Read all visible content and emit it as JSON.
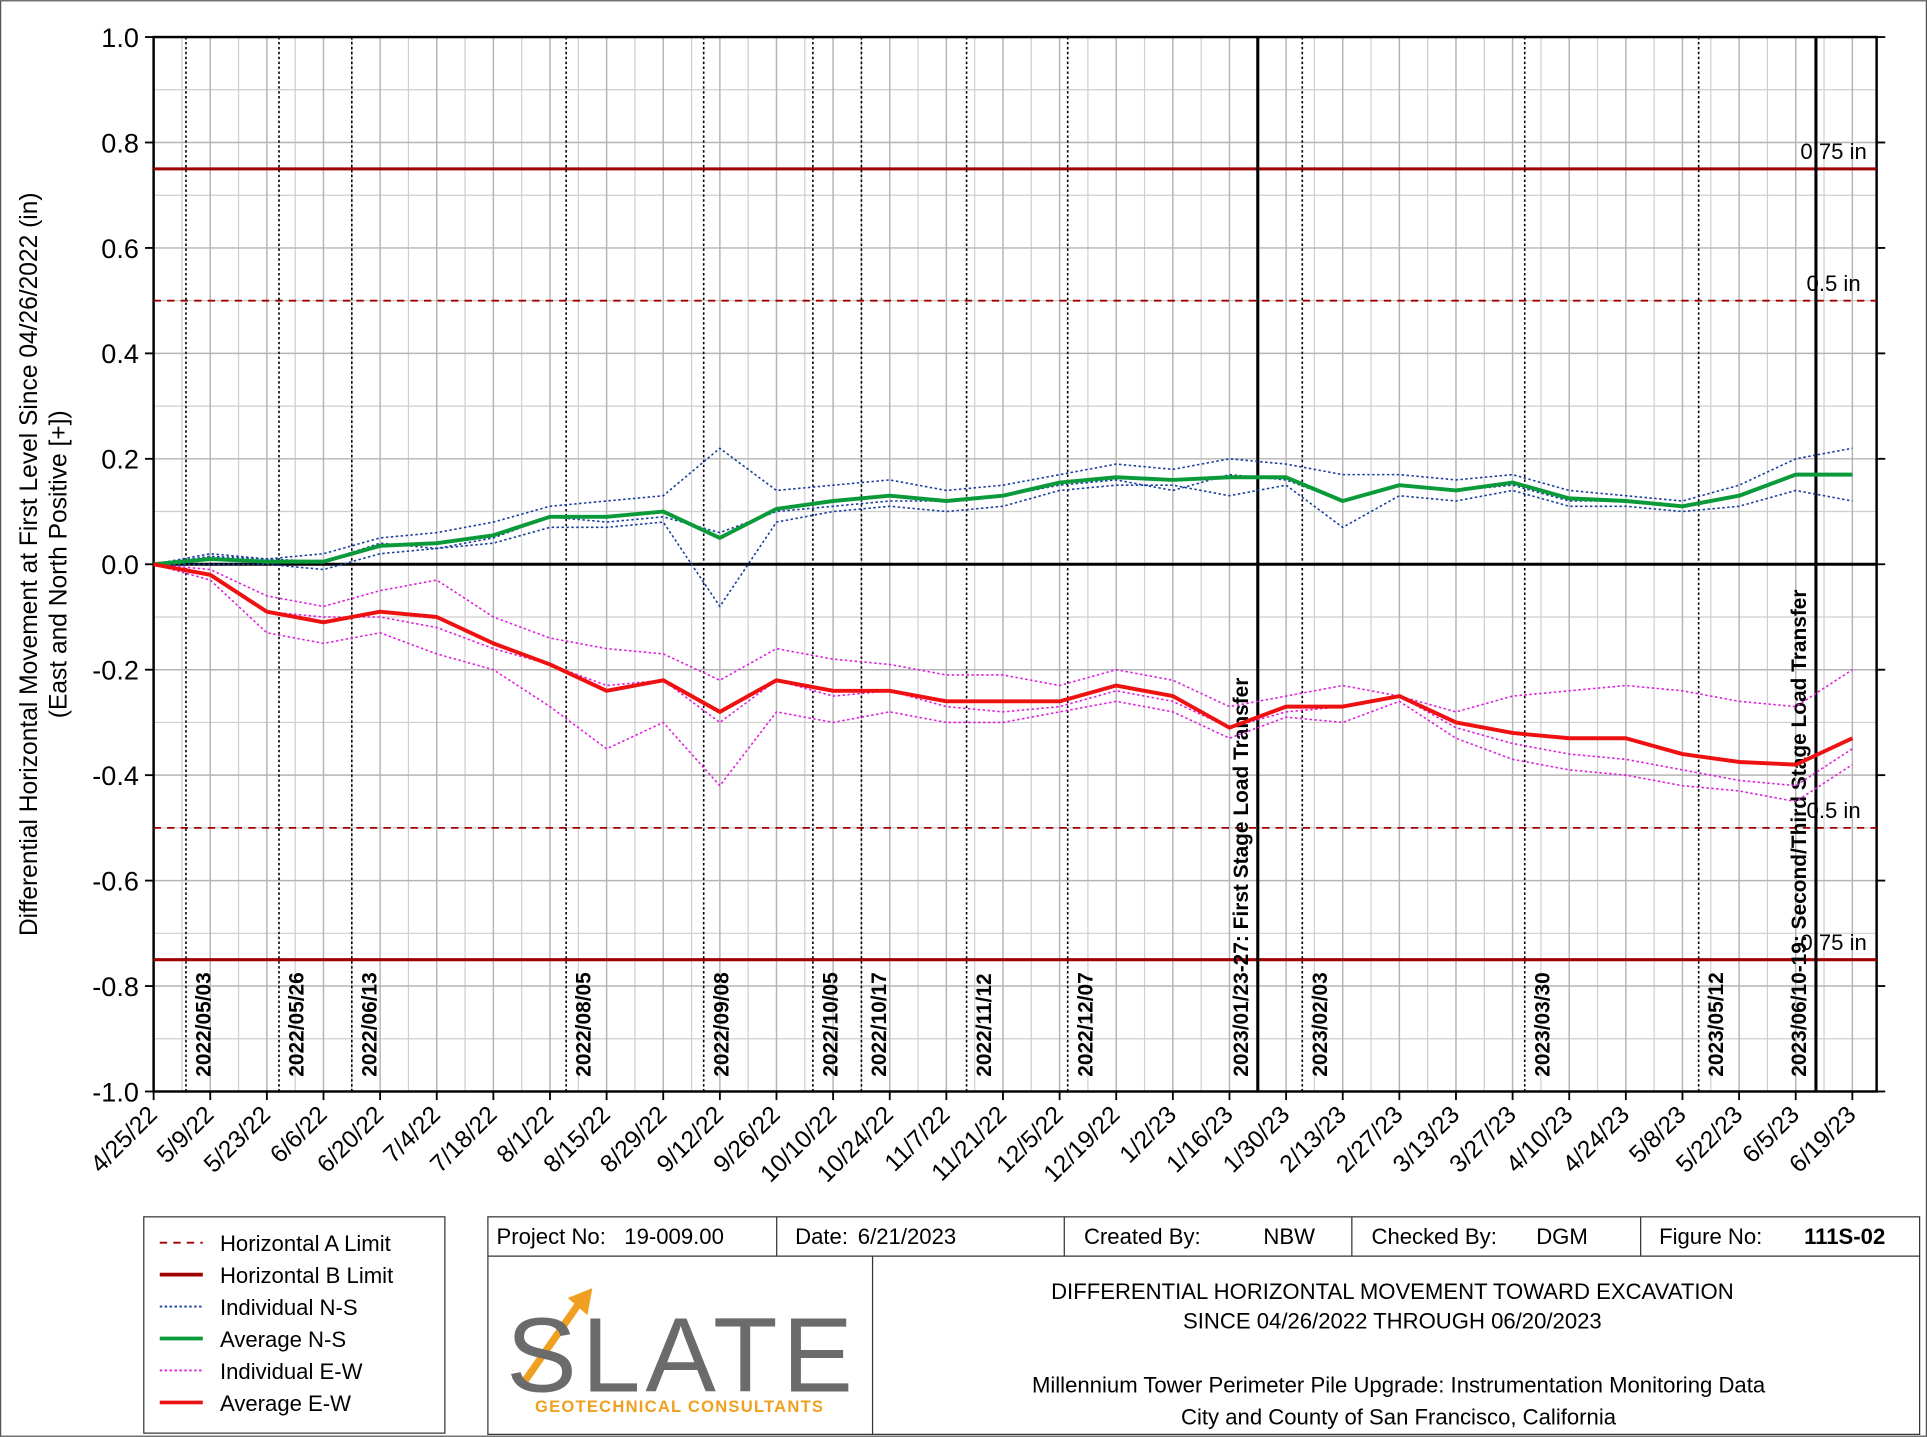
{
  "chart_data": {
    "type": "line",
    "y_label": [
      "Differential Horizontal Movement at First Level Since 04/26/2022 (in)",
      "(East and North Positive [+])"
    ],
    "xlim": [
      "2022-04-25",
      "2023-06-25"
    ],
    "ylim": [
      -1,
      1
    ],
    "grid": true,
    "yticks": [
      {
        "value": 1,
        "label": "1.0"
      },
      0.8,
      0.6,
      0.4,
      0.2,
      {
        "value": 0,
        "label": "0.0"
      },
      -0.2,
      -0.4,
      -0.6,
      -0.8,
      {
        "value": -1,
        "label": "-1.0"
      }
    ],
    "xticks": [
      {
        "value": "2022-04-25",
        "label": "4/25/22"
      },
      {
        "value": "2022-05-09",
        "label": "5/9/22"
      },
      {
        "value": "2022-05-23",
        "label": "5/23/22"
      },
      {
        "value": "2022-06-06",
        "label": "6/6/22"
      },
      {
        "value": "2022-06-20",
        "label": "6/20/22"
      },
      {
        "value": "2022-07-04",
        "label": "7/4/22"
      },
      {
        "value": "2022-07-18",
        "label": "7/18/22"
      },
      {
        "value": "2022-08-01",
        "label": "8/1/22"
      },
      {
        "value": "2022-08-15",
        "label": "8/15/22"
      },
      {
        "value": "2022-08-29",
        "label": "8/29/22"
      },
      {
        "value": "2022-09-12",
        "label": "9/12/22"
      },
      {
        "value": "2022-09-26",
        "label": "9/26/22"
      },
      {
        "value": "2022-10-10",
        "label": "10/10/22"
      },
      {
        "value": "2022-10-24",
        "label": "10/24/22"
      },
      {
        "value": "2022-11-07",
        "label": "11/7/22"
      },
      {
        "value": "2022-11-21",
        "label": "11/21/22"
      },
      {
        "value": "2022-12-05",
        "label": "12/5/22"
      },
      {
        "value": "2022-12-19",
        "label": "12/19/22"
      },
      {
        "value": "2023-01-02",
        "label": "1/2/23"
      },
      {
        "value": "2023-01-16",
        "label": "1/16/23"
      },
      {
        "value": "2023-01-30",
        "label": "1/30/23"
      },
      {
        "value": "2023-02-13",
        "label": "2/13/23"
      },
      {
        "value": "2023-02-27",
        "label": "2/27/23"
      },
      {
        "value": "2023-03-13",
        "label": "3/13/23"
      },
      {
        "value": "2023-03-27",
        "label": "3/27/23"
      },
      {
        "value": "2023-04-10",
        "label": "4/10/23"
      },
      {
        "value": "2023-04-24",
        "label": "4/24/23"
      },
      {
        "value": "2023-05-08",
        "label": "5/8/23"
      },
      {
        "value": "2023-05-22",
        "label": "5/22/23"
      },
      {
        "value": "2023-06-05",
        "label": "6/5/23"
      },
      {
        "value": "2023-06-19",
        "label": "6/19/23"
      }
    ],
    "x": [
      "2022-04-25",
      "2022-05-09",
      "2022-05-23",
      "2022-06-06",
      "2022-06-20",
      "2022-07-04",
      "2022-07-18",
      "2022-08-01",
      "2022-08-15",
      "2022-08-29",
      "2022-09-12",
      "2022-09-26",
      "2022-10-10",
      "2022-10-24",
      "2022-11-07",
      "2022-11-21",
      "2022-12-05",
      "2022-12-19",
      "2023-01-02",
      "2023-01-16",
      "2023-01-30",
      "2023-02-13",
      "2023-02-27",
      "2023-03-13",
      "2023-03-27",
      "2023-04-10",
      "2023-04-24",
      "2023-05-08",
      "2023-05-22",
      "2023-06-05",
      "2023-06-19"
    ],
    "limits": [
      {
        "name": "Horizontal A Limit",
        "color": "#a00000",
        "style": "dashed",
        "values": [
          0.5,
          -0.5
        ],
        "value_labels": [
          "0.5 in",
          "0.5 in"
        ]
      },
      {
        "name": "Horizontal B Limit",
        "color": "#a00000",
        "style": "solid",
        "values": [
          0.75,
          -0.75
        ],
        "value_labels": [
          "0.75 in",
          "0.75 in"
        ]
      }
    ],
    "series": [
      {
        "name": "Individual N-S",
        "color": "#1a3fa0",
        "style": "dotted",
        "lines": [
          [
            0,
            0.02,
            0.01,
            0.02,
            0.05,
            0.06,
            0.08,
            0.11,
            0.12,
            0.13,
            0.22,
            0.14,
            0.15,
            0.16,
            0.14,
            0.15,
            0.17,
            0.19,
            0.18,
            0.2,
            0.19,
            0.17,
            0.17,
            0.16,
            0.17,
            0.14,
            0.13,
            0.12,
            0.15,
            0.2,
            0.22
          ],
          [
            0,
            0.0,
            0.0,
            -0.01,
            0.02,
            0.03,
            0.04,
            0.07,
            0.07,
            0.08,
            -0.08,
            0.08,
            0.1,
            0.11,
            0.1,
            0.11,
            0.14,
            0.15,
            0.15,
            0.13,
            0.15,
            0.07,
            0.13,
            0.12,
            0.14,
            0.11,
            0.11,
            0.1,
            0.11,
            0.14,
            0.12
          ],
          [
            0,
            0.015,
            0.01,
            0.005,
            0.04,
            0.03,
            0.05,
            0.09,
            0.08,
            0.09,
            0.06,
            0.1,
            0.11,
            0.12,
            0.12,
            0.13,
            0.15,
            0.16,
            0.14,
            0.17,
            0.16,
            0.12,
            0.15,
            0.14,
            0.15,
            0.12,
            0.12,
            0.11,
            0.13,
            0.17,
            0.17
          ]
        ]
      },
      {
        "name": "Average N-S",
        "color": "#0a9a3a",
        "style": "solid",
        "values": [
          0,
          0.01,
          0.005,
          0.005,
          0.035,
          0.04,
          0.055,
          0.09,
          0.09,
          0.1,
          0.05,
          0.105,
          0.12,
          0.13,
          0.12,
          0.13,
          0.155,
          0.165,
          0.16,
          0.165,
          0.165,
          0.12,
          0.15,
          0.14,
          0.155,
          0.125,
          0.12,
          0.11,
          0.13,
          0.17,
          0.17
        ]
      },
      {
        "name": "Individual E-W",
        "color": "#e020e0",
        "style": "dotted",
        "lines": [
          [
            0,
            -0.01,
            -0.06,
            -0.08,
            -0.05,
            -0.03,
            -0.1,
            -0.14,
            -0.16,
            -0.17,
            -0.22,
            -0.16,
            -0.18,
            -0.19,
            -0.21,
            -0.21,
            -0.23,
            -0.2,
            -0.22,
            -0.27,
            -0.25,
            -0.23,
            -0.25,
            -0.28,
            -0.25,
            -0.24,
            -0.23,
            -0.24,
            -0.26,
            -0.27,
            -0.2
          ],
          [
            0,
            -0.03,
            -0.13,
            -0.15,
            -0.13,
            -0.17,
            -0.2,
            -0.27,
            -0.35,
            -0.3,
            -0.42,
            -0.28,
            -0.3,
            -0.28,
            -0.3,
            -0.3,
            -0.28,
            -0.26,
            -0.28,
            -0.33,
            -0.29,
            -0.3,
            -0.26,
            -0.33,
            -0.37,
            -0.39,
            -0.4,
            -0.42,
            -0.43,
            -0.45,
            -0.38
          ],
          [
            0,
            -0.02,
            -0.09,
            -0.1,
            -0.1,
            -0.12,
            -0.16,
            -0.19,
            -0.23,
            -0.22,
            -0.3,
            -0.22,
            -0.25,
            -0.24,
            -0.27,
            -0.28,
            -0.27,
            -0.24,
            -0.26,
            -0.31,
            -0.28,
            -0.27,
            -0.25,
            -0.31,
            -0.34,
            -0.36,
            -0.37,
            -0.39,
            -0.41,
            -0.42,
            -0.35
          ]
        ]
      },
      {
        "name": "Average E-W",
        "color": "#ee1111",
        "style": "solid",
        "values": [
          0,
          -0.02,
          -0.09,
          -0.11,
          -0.09,
          -0.1,
          -0.15,
          -0.19,
          -0.24,
          -0.22,
          -0.28,
          -0.22,
          -0.24,
          -0.24,
          -0.26,
          -0.26,
          -0.26,
          -0.23,
          -0.25,
          -0.31,
          -0.27,
          -0.27,
          -0.25,
          -0.3,
          -0.32,
          -0.33,
          -0.33,
          -0.36,
          -0.375,
          -0.38,
          -0.33
        ]
      }
    ],
    "events": [
      {
        "date": "2022-05-03",
        "label": "2022/05/03",
        "style": "dotted"
      },
      {
        "date": "2022-05-26",
        "label": "2022/05/26",
        "style": "dotted"
      },
      {
        "date": "2022-06-13",
        "label": "2022/06/13",
        "style": "dotted"
      },
      {
        "date": "2022-08-05",
        "label": "2022/08/05",
        "style": "dotted"
      },
      {
        "date": "2022-09-08",
        "label": "2022/09/08",
        "style": "dotted"
      },
      {
        "date": "2022-10-05",
        "label": "2022/10/05",
        "style": "dotted"
      },
      {
        "date": "2022-10-17",
        "label": "2022/10/17",
        "style": "dotted"
      },
      {
        "date": "2022-11-12",
        "label": "2022/11/12",
        "style": "dotted"
      },
      {
        "date": "2022-12-07",
        "label": "2022/12/07",
        "style": "dotted"
      },
      {
        "date": "2023-01-23",
        "label": "2023/01/23-27: First Stage Load Transfer",
        "style": "solid"
      },
      {
        "date": "2023-02-03",
        "label": "2023/02/03",
        "style": "dotted"
      },
      {
        "date": "2023-03-30",
        "label": "2023/03/30",
        "style": "dotted"
      },
      {
        "date": "2023-05-12",
        "label": "2023/05/12",
        "style": "dotted"
      },
      {
        "date": "2023-06-10",
        "label": "2023/06/10-19: Second/Third Stage Load Transfer",
        "style": "solid"
      }
    ]
  },
  "title_block": {
    "project_label": "Project No:",
    "project": "19-009.00",
    "date_label": "Date:",
    "date": "6/21/2023",
    "created_label": "Created By:",
    "created": "NBW",
    "checked_label": "Checked By:",
    "checked": "DGM",
    "figure_label": "Figure No:",
    "figure": "111S-02",
    "title_lines": [
      "DIFFERENTIAL HORIZONTAL MOVEMENT TOWARD EXCAVATION",
      "SINCE 04/26/2022 THROUGH 06/20/2023"
    ],
    "subtitle_lines": [
      "Millennium Tower Perimeter Pile Upgrade: Instrumentation Monitoring Data",
      "City and County of San Francisco, California"
    ],
    "logo": "SLATE",
    "logo_tagline": "GEOTECHNICAL CONSULTANTS"
  }
}
